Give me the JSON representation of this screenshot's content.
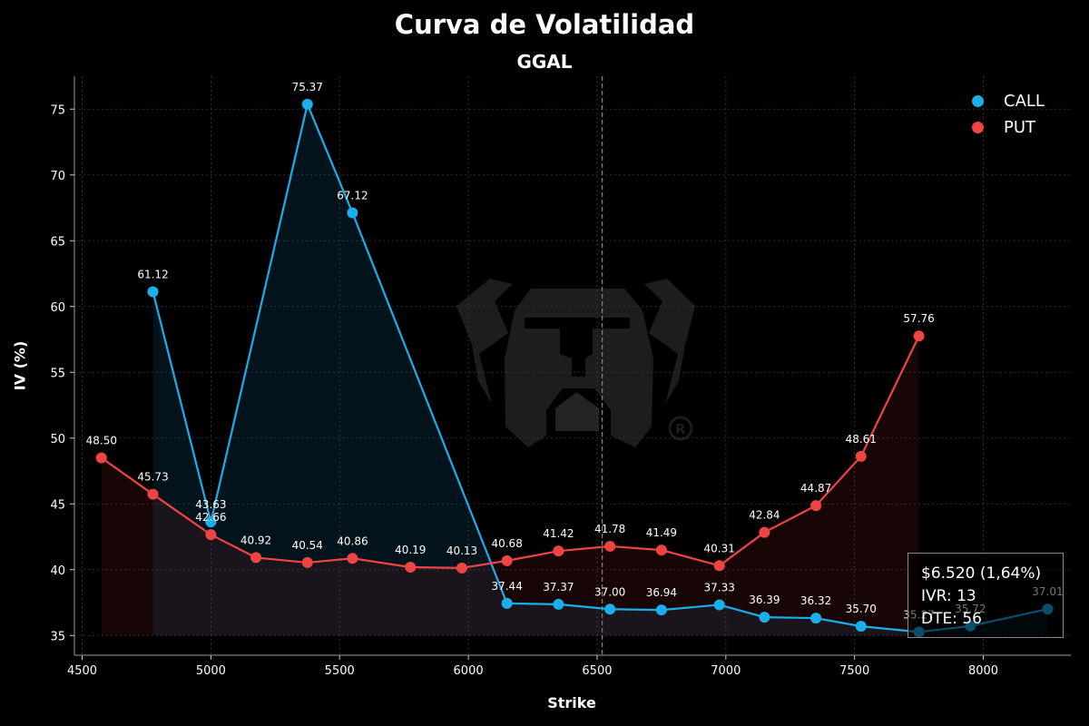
{
  "chart_data": {
    "type": "line",
    "title": "Curva de Volatilidad",
    "subtitle": "GGAL",
    "xlabel": "Strike",
    "ylabel": "IV (%)",
    "xlim": [
      4470,
      8340
    ],
    "ylim": [
      33.5,
      77.5
    ],
    "x_ticks": [
      4500,
      5000,
      5500,
      6000,
      6500,
      7000,
      7500,
      8000
    ],
    "y_ticks": [
      35,
      40,
      45,
      50,
      55,
      60,
      65,
      70,
      75
    ],
    "grid": true,
    "legend_position": "top-right",
    "spot_line_x": 6520,
    "series": [
      {
        "name": "CALL",
        "color": "#1aaeea",
        "points": [
          {
            "x": 4775,
            "y": 61.12,
            "label": "61.12"
          },
          {
            "x": 5000,
            "y": 43.63,
            "label": "43.63"
          },
          {
            "x": 5375,
            "y": 75.37,
            "label": "75.37"
          },
          {
            "x": 5550,
            "y": 67.12,
            "label": "67.12"
          },
          {
            "x": 6150,
            "y": 37.44,
            "label": "37.44"
          },
          {
            "x": 6350,
            "y": 37.37,
            "label": "37.37"
          },
          {
            "x": 6550,
            "y": 37.0,
            "label": "37.00"
          },
          {
            "x": 6750,
            "y": 36.94,
            "label": "36.94"
          },
          {
            "x": 6975,
            "y": 37.33,
            "label": "37.33"
          },
          {
            "x": 7150,
            "y": 36.39,
            "label": "36.39"
          },
          {
            "x": 7350,
            "y": 36.32,
            "label": "36.32"
          },
          {
            "x": 7525,
            "y": 35.7,
            "label": "35.70"
          },
          {
            "x": 7750,
            "y": 35.27,
            "label": "35.27"
          },
          {
            "x": 7950,
            "y": 35.72,
            "label": "35.72"
          },
          {
            "x": 8250,
            "y": 37.01,
            "label": "37.01"
          }
        ]
      },
      {
        "name": "PUT",
        "color": "#ef4444",
        "points": [
          {
            "x": 4575,
            "y": 48.5,
            "label": "48.50"
          },
          {
            "x": 4775,
            "y": 45.73,
            "label": "45.73"
          },
          {
            "x": 5000,
            "y": 42.66,
            "label": "42.66"
          },
          {
            "x": 5175,
            "y": 40.92,
            "label": "40.92"
          },
          {
            "x": 5375,
            "y": 40.54,
            "label": "40.54"
          },
          {
            "x": 5550,
            "y": 40.86,
            "label": "40.86"
          },
          {
            "x": 5775,
            "y": 40.19,
            "label": "40.19"
          },
          {
            "x": 5975,
            "y": 40.13,
            "label": "40.13"
          },
          {
            "x": 6150,
            "y": 40.68,
            "label": "40.68"
          },
          {
            "x": 6350,
            "y": 41.42,
            "label": "41.42"
          },
          {
            "x": 6550,
            "y": 41.78,
            "label": "41.78"
          },
          {
            "x": 6750,
            "y": 41.49,
            "label": "41.49"
          },
          {
            "x": 6975,
            "y": 40.31,
            "label": "40.31"
          },
          {
            "x": 7150,
            "y": 42.84,
            "label": "42.84"
          },
          {
            "x": 7350,
            "y": 44.87,
            "label": "44.87"
          },
          {
            "x": 7525,
            "y": 48.61,
            "label": "48.61"
          },
          {
            "x": 7750,
            "y": 57.76,
            "label": "57.76"
          }
        ]
      }
    ]
  },
  "info_box": {
    "price": "$6.520 (1,64%)",
    "ivr": "IVR: 13",
    "dte": "DTE: 56"
  },
  "colors": {
    "background": "#000000",
    "call": "#1aaeea",
    "put": "#ef4444",
    "grid": "#3a3a3a",
    "watermark": "#1c1c1c"
  },
  "watermark_icon": "bulldog-logo-icon"
}
